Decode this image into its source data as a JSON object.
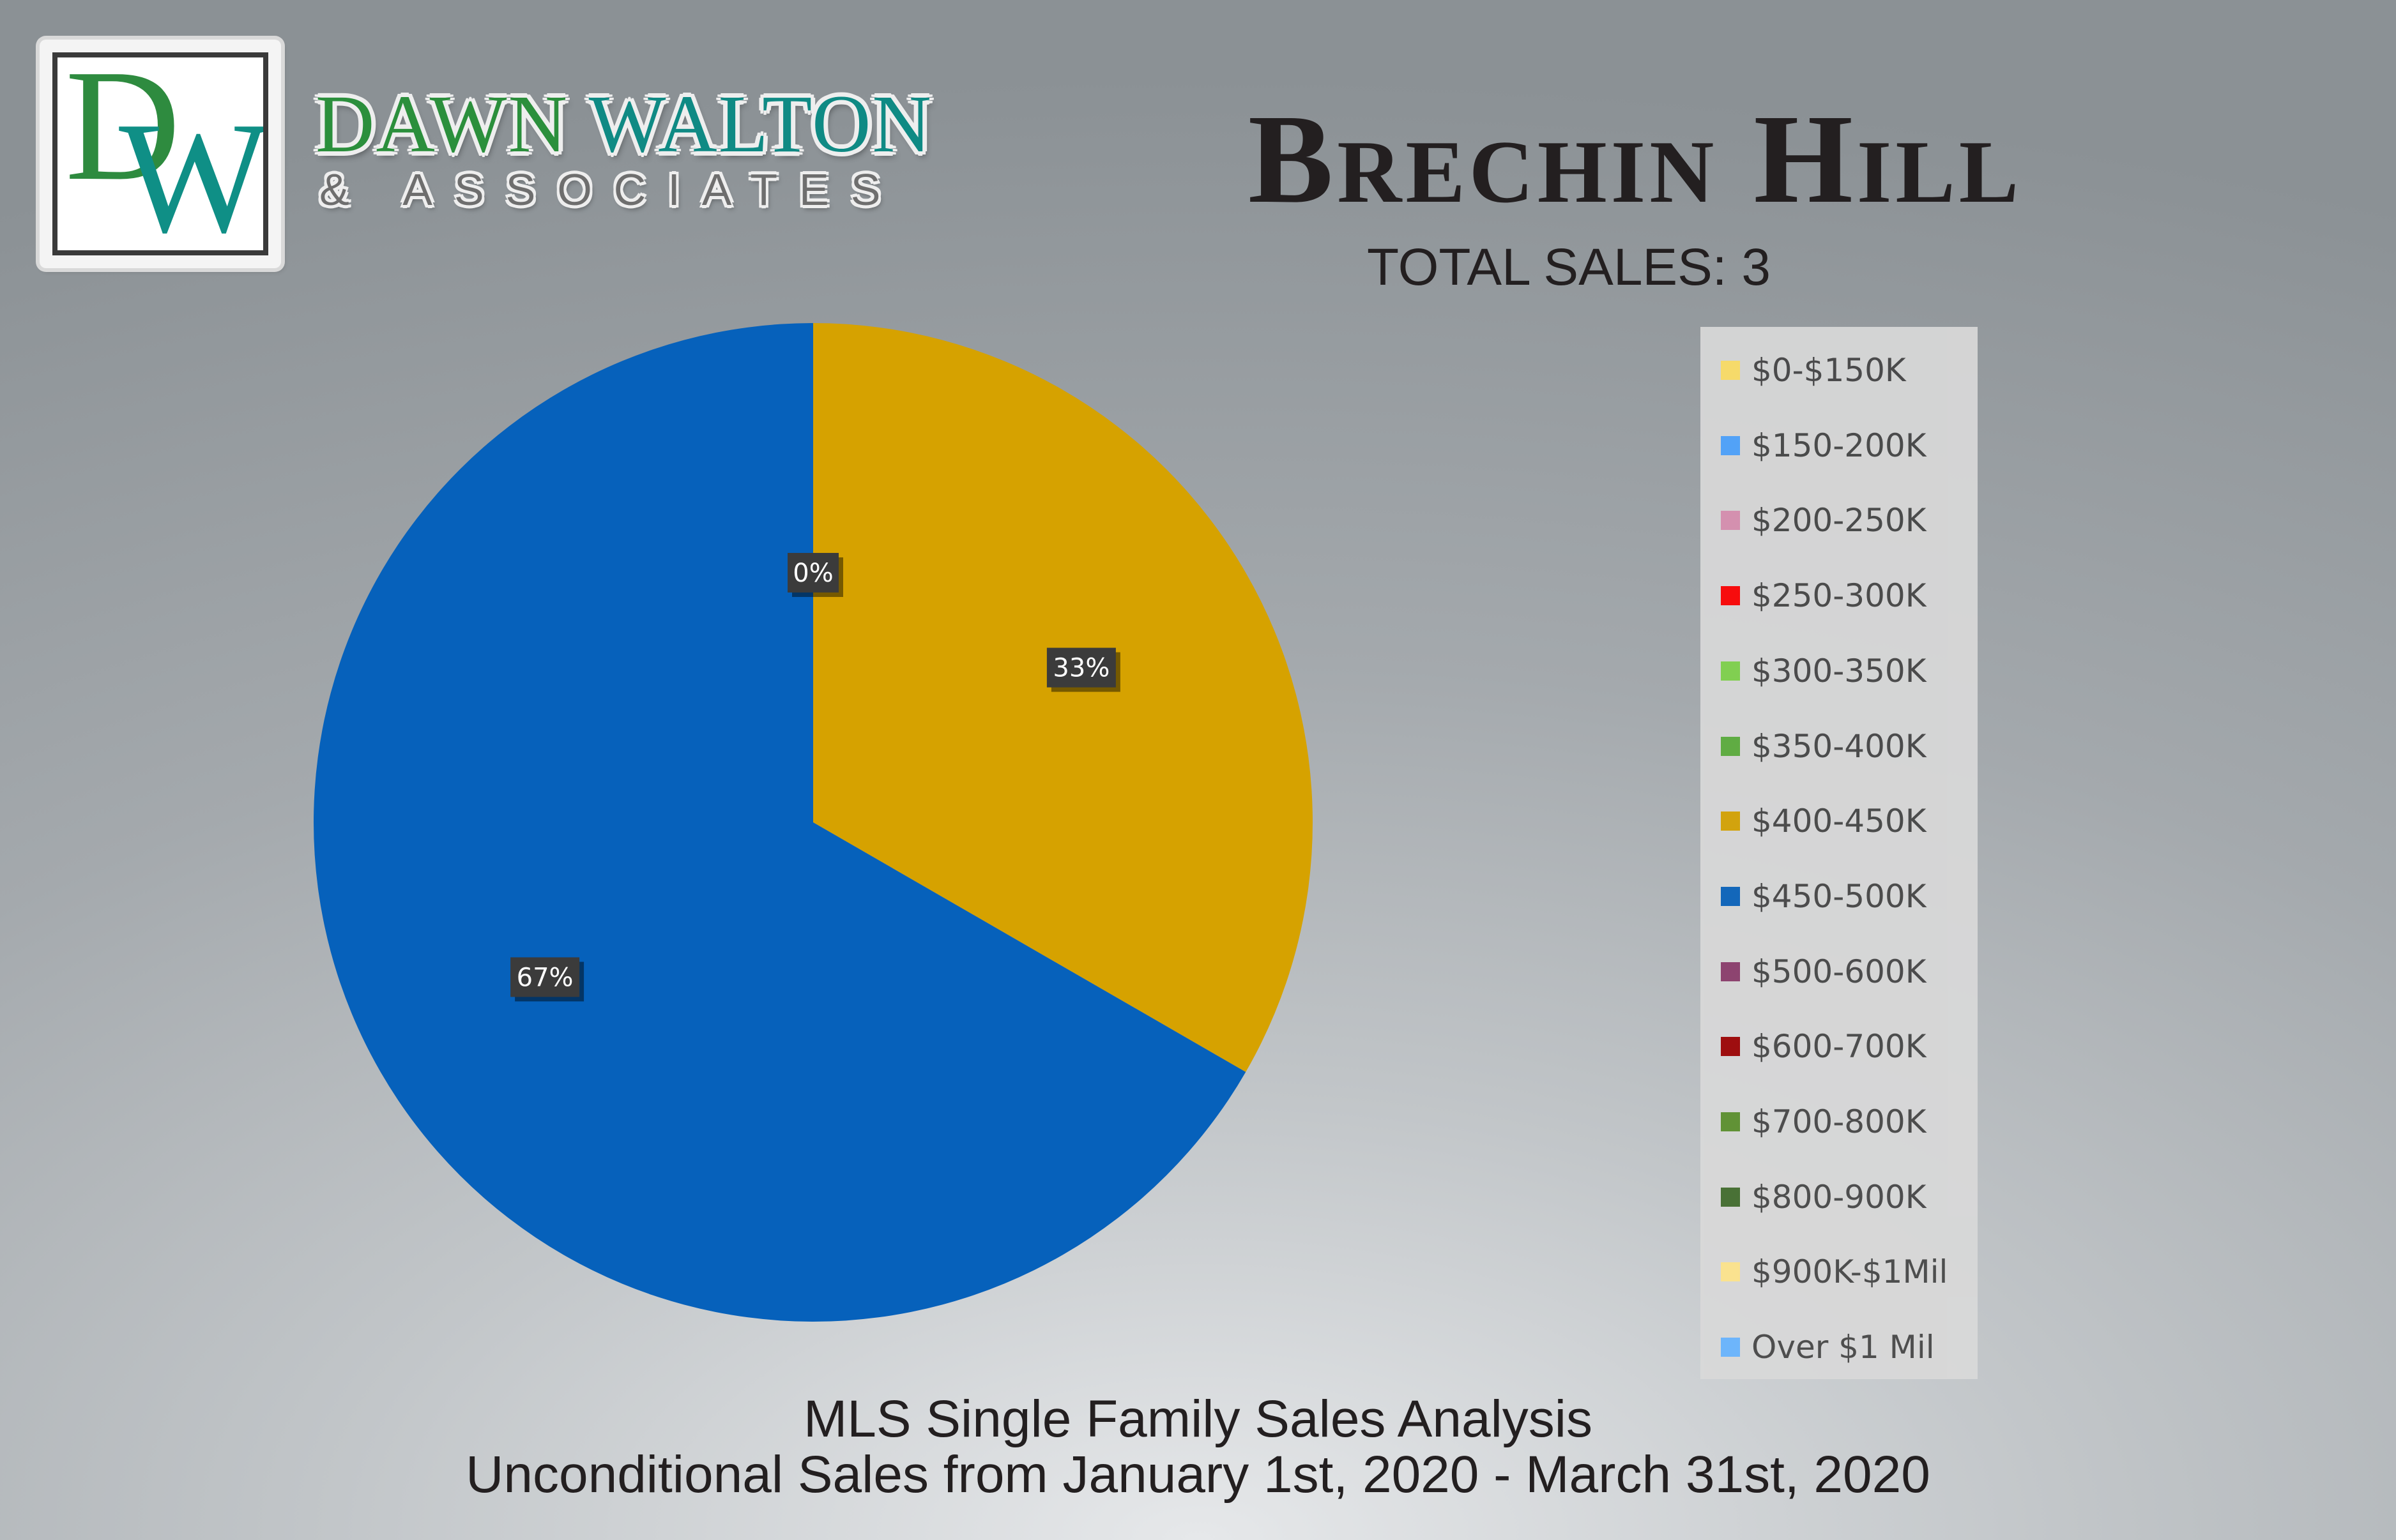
{
  "brand": {
    "logo_letters": "DW",
    "name_part1": "DAWN",
    "name_part2": "WALTON",
    "tagline": "& ASSOCIATES"
  },
  "header": {
    "title": "Brechin Hill",
    "total_sales": "TOTAL SALES:  3"
  },
  "footer": {
    "line1": "MLS Single Family Sales Analysis",
    "line2": "Unconditional Sales from January 1st, 2020 - March 31st, 2020"
  },
  "chart_data": {
    "type": "pie",
    "categories": [
      "$0-$150K",
      "$150-200K",
      "$200-250K",
      "$250-300K",
      "$300-350K",
      "$350-400K",
      "$400-450K",
      "$450-500K",
      "$500-600K",
      "$600-700K",
      "$700-800K",
      "$800-900K",
      "$900K-$1Mil",
      "Over $1 Mil"
    ],
    "values": [
      0,
      0,
      0,
      0,
      0,
      0,
      1,
      2,
      0,
      0,
      0,
      0,
      0,
      0
    ],
    "colors": [
      "#ffe066",
      "#4da3ff",
      "#d98fb0",
      "#ff0000",
      "#7fd34a",
      "#5aad3a",
      "#d6a200",
      "#0661bb",
      "#8a3a6a",
      "#9c0000",
      "#5a8f2a",
      "#3f6a2a",
      "#ffe58a",
      "#66b3ff"
    ],
    "data_labels": [
      {
        "text": "0%",
        "category": "$350-400K"
      },
      {
        "text": "33%",
        "category": "$400-450K"
      },
      {
        "text": "67%",
        "category": "$450-500K"
      }
    ],
    "legend_position": "right"
  }
}
